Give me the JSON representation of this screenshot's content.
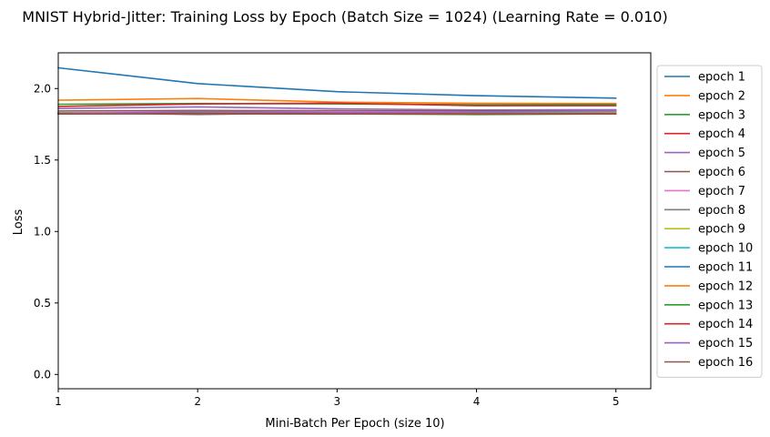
{
  "chart_data": {
    "type": "line",
    "title": "MNIST Hybrid-Jitter: Training Loss by Epoch (Batch Size = 1024) (Learning Rate = 0.010)",
    "xlabel": "Mini-Batch Per Epoch (size 10)",
    "ylabel": "Loss",
    "xlim": [
      1,
      5.25
    ],
    "ylim": [
      -0.1,
      2.25
    ],
    "xticks": [
      1,
      2,
      3,
      4,
      5
    ],
    "xtick_labels": [
      "1",
      "2",
      "3",
      "4",
      "5"
    ],
    "yticks": [
      0.0,
      0.5,
      1.0,
      1.5,
      2.0
    ],
    "ytick_labels": [
      "0.0",
      "0.5",
      "1.0",
      "1.5",
      "2.0"
    ],
    "grid": false,
    "legend_position": "outside-right-top",
    "x": [
      1,
      2,
      3,
      4,
      5
    ],
    "series": [
      {
        "name": "epoch 1",
        "color": "#1f77b4",
        "values": [
          2.145,
          2.035,
          1.978,
          1.95,
          1.933
        ]
      },
      {
        "name": "epoch 2",
        "color": "#ff7f0e",
        "values": [
          1.918,
          1.93,
          1.905,
          1.897,
          1.895
        ]
      },
      {
        "name": "epoch 3",
        "color": "#2ca02c",
        "values": [
          1.89,
          1.895,
          1.893,
          1.887,
          1.888
        ]
      },
      {
        "name": "epoch 4",
        "color": "#d62728",
        "values": [
          1.875,
          1.892,
          1.898,
          1.88,
          1.88
        ]
      },
      {
        "name": "epoch 5",
        "color": "#9467bd",
        "values": [
          1.86,
          1.872,
          1.858,
          1.85,
          1.852
        ]
      },
      {
        "name": "epoch 6",
        "color": "#8c564b",
        "values": [
          1.843,
          1.847,
          1.845,
          1.843,
          1.844
        ]
      },
      {
        "name": "epoch 7",
        "color": "#e377c2",
        "values": [
          1.837,
          1.838,
          1.838,
          1.836,
          1.838
        ]
      },
      {
        "name": "epoch 8",
        "color": "#7f7f7f",
        "values": [
          1.832,
          1.818,
          1.83,
          1.83,
          1.832
        ]
      },
      {
        "name": "epoch 9",
        "color": "#bcbd22",
        "values": [
          1.83,
          1.832,
          1.829,
          1.829,
          1.83
        ]
      },
      {
        "name": "epoch 10",
        "color": "#17becf",
        "values": [
          1.828,
          1.83,
          1.828,
          1.828,
          1.828
        ]
      },
      {
        "name": "epoch 11",
        "color": "#1f77b4",
        "values": [
          1.826,
          1.828,
          1.827,
          1.826,
          1.826
        ]
      },
      {
        "name": "epoch 12",
        "color": "#ff7f0e",
        "values": [
          1.825,
          1.827,
          1.826,
          1.825,
          1.826
        ]
      },
      {
        "name": "epoch 13",
        "color": "#2ca02c",
        "values": [
          1.824,
          1.826,
          1.822,
          1.818,
          1.822
        ]
      },
      {
        "name": "epoch 14",
        "color": "#d62728",
        "values": [
          1.823,
          1.825,
          1.824,
          1.823,
          1.824
        ]
      },
      {
        "name": "epoch 15",
        "color": "#9467bd",
        "values": [
          1.822,
          1.84,
          1.832,
          1.836,
          1.845
        ]
      },
      {
        "name": "epoch 16",
        "color": "#8c564b",
        "values": [
          1.822,
          1.823,
          1.822,
          1.822,
          1.823
        ]
      }
    ]
  }
}
